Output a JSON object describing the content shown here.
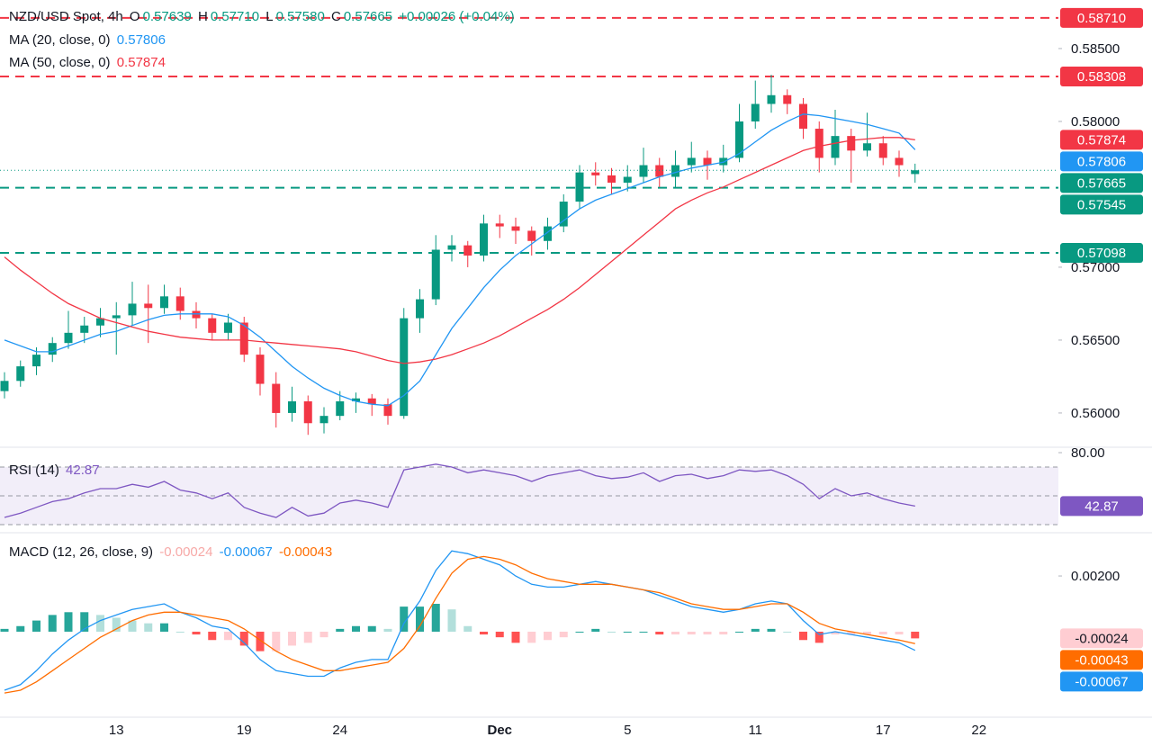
{
  "header": {
    "symbol": "NZD/USD Spot, 4h",
    "o_label": "O",
    "open": "0.57639",
    "h_label": "H",
    "high": "0.57710",
    "l_label": "L",
    "low": "0.57580",
    "c_label": "C",
    "close": "0.57665",
    "change": "+0.00026 (+0.04%)"
  },
  "chart_data": [
    {
      "type": "candlestick",
      "categories": [
        null,
        null,
        null,
        null,
        null,
        null,
        null,
        "13",
        null,
        null,
        null,
        null,
        null,
        null,
        null,
        "19",
        null,
        null,
        null,
        null,
        null,
        "24",
        null,
        null,
        null,
        null,
        null,
        null,
        null,
        null,
        null,
        "Dec",
        null,
        null,
        null,
        null,
        null,
        null,
        null,
        "5",
        null,
        null,
        null,
        null,
        null,
        null,
        null,
        "11",
        null,
        null,
        null,
        null,
        null,
        null,
        null,
        "17",
        null,
        null,
        null,
        null,
        null,
        "22",
        null,
        null,
        null,
        null,
        null
      ],
      "up_color": "#089981",
      "down_color": "#f23645",
      "ohlc": [
        [
          0.5615,
          0.5628,
          0.561,
          0.5622
        ],
        [
          0.5622,
          0.5636,
          0.5618,
          0.5632
        ],
        [
          0.5632,
          0.5645,
          0.5626,
          0.564
        ],
        [
          0.564,
          0.5652,
          0.5635,
          0.5648
        ],
        [
          0.5648,
          0.567,
          0.5644,
          0.5655
        ],
        [
          0.5655,
          0.5666,
          0.5648,
          0.566
        ],
        [
          0.566,
          0.5672,
          0.5652,
          0.5665
        ],
        [
          0.5665,
          0.5676,
          0.564,
          0.5667
        ],
        [
          0.5667,
          0.569,
          0.566,
          0.5675
        ],
        [
          0.5675,
          0.5688,
          0.5648,
          0.5672
        ],
        [
          0.5672,
          0.5688,
          0.5668,
          0.568
        ],
        [
          0.568,
          0.5686,
          0.5664,
          0.567
        ],
        [
          0.567,
          0.5676,
          0.5658,
          0.5665
        ],
        [
          0.5665,
          0.5668,
          0.565,
          0.5655
        ],
        [
          0.5655,
          0.5668,
          0.565,
          0.5662
        ],
        [
          0.5662,
          0.5666,
          0.5635,
          0.564
        ],
        [
          0.564,
          0.5645,
          0.5612,
          0.562
        ],
        [
          0.562,
          0.5628,
          0.559,
          0.56
        ],
        [
          0.56,
          0.5618,
          0.5594,
          0.5608
        ],
        [
          0.5608,
          0.5612,
          0.5585,
          0.5593
        ],
        [
          0.5593,
          0.5604,
          0.5586,
          0.5598
        ],
        [
          0.5598,
          0.5615,
          0.5595,
          0.5608
        ],
        [
          0.5608,
          0.5614,
          0.56,
          0.561
        ],
        [
          0.561,
          0.5613,
          0.5598,
          0.5606
        ],
        [
          0.5606,
          0.561,
          0.5592,
          0.5598
        ],
        [
          0.5598,
          0.5672,
          0.5596,
          0.5665
        ],
        [
          0.5665,
          0.5685,
          0.5655,
          0.5678
        ],
        [
          0.5678,
          0.5722,
          0.5674,
          0.5712
        ],
        [
          0.5712,
          0.5722,
          0.5704,
          0.5715
        ],
        [
          0.5715,
          0.5718,
          0.57,
          0.5708
        ],
        [
          0.5708,
          0.5736,
          0.5704,
          0.573
        ],
        [
          0.573,
          0.5736,
          0.572,
          0.5728
        ],
        [
          0.5728,
          0.5734,
          0.5716,
          0.5725
        ],
        [
          0.5725,
          0.5728,
          0.5708,
          0.5718
        ],
        [
          0.5718,
          0.5734,
          0.5712,
          0.5728
        ],
        [
          0.5728,
          0.575,
          0.5724,
          0.5745
        ],
        [
          0.5745,
          0.577,
          0.574,
          0.5765
        ],
        [
          0.5765,
          0.5772,
          0.5756,
          0.5763
        ],
        [
          0.5763,
          0.5768,
          0.575,
          0.5758
        ],
        [
          0.5758,
          0.577,
          0.5752,
          0.5762
        ],
        [
          0.5762,
          0.5782,
          0.5758,
          0.577
        ],
        [
          0.577,
          0.5775,
          0.5755,
          0.5762
        ],
        [
          0.5762,
          0.578,
          0.5754,
          0.577
        ],
        [
          0.577,
          0.5786,
          0.5765,
          0.5775
        ],
        [
          0.5775,
          0.578,
          0.576,
          0.577
        ],
        [
          0.577,
          0.5784,
          0.5765,
          0.5775
        ],
        [
          0.5775,
          0.5812,
          0.5772,
          0.58
        ],
        [
          0.58,
          0.5828,
          0.5795,
          0.5812
        ],
        [
          0.5812,
          0.5832,
          0.5806,
          0.5818
        ],
        [
          0.5818,
          0.5822,
          0.5805,
          0.5812
        ],
        [
          0.5812,
          0.5816,
          0.5788,
          0.5795
        ],
        [
          0.5795,
          0.58,
          0.5765,
          0.5775
        ],
        [
          0.5775,
          0.5808,
          0.577,
          0.579
        ],
        [
          0.579,
          0.5795,
          0.5758,
          0.578
        ],
        [
          0.578,
          0.5806,
          0.5776,
          0.5785
        ],
        [
          0.5785,
          0.579,
          0.577,
          0.5775
        ],
        [
          0.5775,
          0.578,
          0.5762,
          0.577
        ],
        [
          0.57639,
          0.5771,
          0.5758,
          0.57665
        ],
        null,
        null,
        null,
        null,
        null,
        null,
        null,
        null,
        null
      ],
      "ylim": [
        0.55765,
        0.58833
      ],
      "yticks": [
        {
          "value": 0.585,
          "label": "0.58500"
        },
        {
          "value": 0.58,
          "label": "0.58000"
        },
        {
          "value": 0.57,
          "label": "0.57000"
        },
        {
          "value": 0.565,
          "label": "0.56500"
        },
        {
          "value": 0.56,
          "label": "0.56000"
        }
      ],
      "series": [
        {
          "name": "MA (20, close, 0)",
          "color": "#2196f3",
          "legend_value": 0.57806,
          "values": [
            0.565,
            0.5646,
            0.5642,
            0.5642,
            0.5646,
            0.565,
            0.5654,
            0.5656,
            0.566,
            0.5664,
            0.5667,
            0.5668,
            0.5668,
            0.5668,
            0.5666,
            0.566,
            0.5652,
            0.5642,
            0.5632,
            0.5624,
            0.5617,
            0.5612,
            0.5608,
            0.5606,
            0.5605,
            0.5612,
            0.5622,
            0.564,
            0.5658,
            0.5672,
            0.5686,
            0.5698,
            0.5708,
            0.5716,
            0.5724,
            0.5732,
            0.574,
            0.5746,
            0.575,
            0.5754,
            0.5758,
            0.5762,
            0.5765,
            0.5768,
            0.577,
            0.5772,
            0.5778,
            0.5786,
            0.5794,
            0.58,
            0.5805,
            0.5804,
            0.5802,
            0.58,
            0.5798,
            0.5795,
            0.5792,
            0.57806,
            null,
            null,
            null,
            null,
            null,
            null,
            null,
            null,
            null
          ]
        },
        {
          "name": "MA (50, close, 0)",
          "color": "#f23645",
          "legend_value": 0.57874,
          "values": [
            0.5707,
            0.5698,
            0.569,
            0.5682,
            0.5675,
            0.567,
            0.5665,
            0.5662,
            0.5659,
            0.5656,
            0.5654,
            0.5652,
            0.5651,
            0.565,
            0.565,
            0.565,
            0.5649,
            0.5648,
            0.5647,
            0.5646,
            0.5645,
            0.5644,
            0.5642,
            0.5639,
            0.5636,
            0.5634,
            0.5635,
            0.5637,
            0.564,
            0.5644,
            0.5648,
            0.5653,
            0.5659,
            0.5665,
            0.5671,
            0.5678,
            0.5686,
            0.5695,
            0.5704,
            0.5713,
            0.5722,
            0.5731,
            0.574,
            0.5746,
            0.5751,
            0.5755,
            0.576,
            0.5765,
            0.577,
            0.5775,
            0.578,
            0.5783,
            0.5785,
            0.5787,
            0.5788,
            0.5789,
            0.5789,
            0.57874,
            null,
            null,
            null,
            null,
            null,
            null,
            null,
            null,
            null
          ]
        }
      ],
      "levels": [
        {
          "value": 0.5871,
          "label": "0.58710",
          "color": "#f23645"
        },
        {
          "value": 0.58308,
          "label": "0.58308",
          "color": "#f23645"
        },
        {
          "value": 0.57545,
          "label": "0.57545",
          "color": "#089981"
        },
        {
          "value": 0.57098,
          "label": "0.57098",
          "color": "#089981"
        }
      ],
      "last_price": 0.57665,
      "last_color": "#089981"
    },
    {
      "type": "line",
      "title": "RSI (14)",
      "legend_value": 42.87,
      "color": "#7e57c2",
      "band_color": "rgba(126,87,194,0.1)",
      "levels": [
        70,
        50,
        30
      ],
      "values": [
        35,
        38,
        42,
        46,
        48,
        52,
        55,
        55,
        58,
        56,
        60,
        54,
        52,
        48,
        52,
        42,
        38,
        35,
        42,
        36,
        38,
        45,
        47,
        45,
        42,
        68,
        70,
        72,
        70,
        66,
        68,
        66,
        64,
        60,
        64,
        66,
        68,
        64,
        62,
        63,
        66,
        60,
        64,
        65,
        62,
        64,
        68,
        67,
        68,
        64,
        58,
        48,
        55,
        50,
        52,
        48,
        45,
        42.87,
        null,
        null,
        null,
        null,
        null,
        null,
        null,
        null,
        null
      ],
      "ylim": [
        24.4,
        83.75
      ],
      "yticks": [
        {
          "value": 80,
          "label": "80.00"
        }
      ]
    },
    {
      "type": "macd",
      "title": "MACD (12, 26, close, 9)",
      "histogram": {
        "legend_value": -0.00024,
        "tag_color": "#ffcdd2",
        "colors": [
          "#26a69a",
          "#b2dfdb",
          "#ff5252",
          "#ffcdd2"
        ],
        "values": [
          0.0001,
          0.0002,
          0.0004,
          0.0006,
          0.0007,
          0.0007,
          0.0006,
          0.0005,
          0.0004,
          0.0003,
          0.0003,
          0,
          -0.0001,
          -0.0003,
          -0.0003,
          -0.0005,
          -0.0007,
          -0.0007,
          -0.0005,
          -0.0004,
          -0.0002,
          0.0001,
          0.0002,
          0.0002,
          0.0001,
          0.0009,
          0.0009,
          0.001,
          0.0008,
          0.0002,
          -0.0001,
          -0.0002,
          -0.0004,
          -0.0004,
          -0.0003,
          -0.0002,
          0,
          0.0001,
          0,
          0,
          0,
          -0.0001,
          -0.0001,
          -0.0001,
          -0.0001,
          -0.0001,
          0,
          0.0001,
          0.0001,
          0,
          -0.0003,
          -0.0004,
          -0.0001,
          -0.0001,
          -0.0001,
          -0.0001,
          -0.0001,
          -0.00024,
          null,
          null,
          null,
          null,
          null,
          null,
          null,
          null,
          null
        ]
      },
      "macd": {
        "color": "#2196f3",
        "legend_value": -0.00067,
        "values": [
          -0.0021,
          -0.0019,
          -0.0014,
          -0.0008,
          -0.0003,
          0.0001,
          0.0004,
          0.0006,
          0.0008,
          0.0009,
          0.001,
          0.0007,
          0.0005,
          0.0002,
          0.0001,
          -0.0004,
          -0.001,
          -0.0014,
          -0.0015,
          -0.0016,
          -0.0016,
          -0.0013,
          -0.0011,
          -0.001,
          -0.001,
          0.0003,
          0.0011,
          0.0022,
          0.0029,
          0.0028,
          0.0026,
          0.0024,
          0.002,
          0.0017,
          0.0016,
          0.0016,
          0.0017,
          0.0018,
          0.0017,
          0.0016,
          0.0015,
          0.0013,
          0.0011,
          0.0009,
          0.0008,
          0.0007,
          0.0008,
          0.001,
          0.0011,
          0.001,
          0.0004,
          -0.0001,
          0,
          -0.0001,
          -0.0002,
          -0.0003,
          -0.0004,
          -0.00067,
          null,
          null,
          null,
          null,
          null,
          null,
          null,
          null,
          null
        ]
      },
      "signal": {
        "color": "#ff6d00",
        "legend_value": -0.00043,
        "values": [
          -0.0022,
          -0.0021,
          -0.0018,
          -0.0014,
          -0.001,
          -0.0006,
          -0.0002,
          0.0001,
          0.0004,
          0.0006,
          0.0007,
          0.0007,
          0.0006,
          0.0005,
          0.0004,
          0.0001,
          -0.0003,
          -0.0007,
          -0.001,
          -0.0012,
          -0.0014,
          -0.0014,
          -0.0013,
          -0.0012,
          -0.0011,
          -0.0006,
          0.0002,
          0.0012,
          0.0021,
          0.0026,
          0.0027,
          0.0026,
          0.0024,
          0.0021,
          0.0019,
          0.0018,
          0.0017,
          0.0017,
          0.0017,
          0.0016,
          0.0015,
          0.0014,
          0.0012,
          0.001,
          0.0009,
          0.0008,
          0.0008,
          0.0009,
          0.001,
          0.001,
          0.0007,
          0.0003,
          0.0001,
          0,
          -0.0001,
          -0.0002,
          -0.0003,
          -0.00043,
          null,
          null,
          null,
          null,
          null,
          null,
          null,
          null,
          null
        ]
      },
      "ylim": [
        -0.00307,
        0.00352
      ],
      "yticks": [
        {
          "value": 0.002,
          "label": "0.00200"
        }
      ]
    }
  ]
}
